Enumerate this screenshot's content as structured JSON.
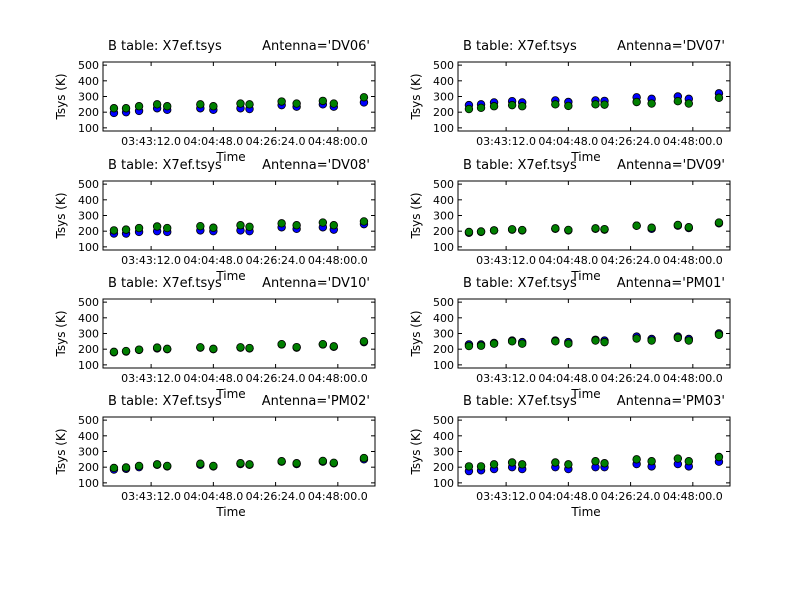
{
  "chart_data": [
    {
      "type": "scatter",
      "title": "B table: X7ef.tsys",
      "antenna": "Antenna='DV06'",
      "xlabel": "Time",
      "ylabel": "Tsys (K)",
      "ylim": [
        80,
        520
      ],
      "yticks": [
        100,
        200,
        300,
        400,
        500
      ],
      "xticks": [
        "03:43:12.0",
        "04:04:48.0",
        "04:26:24.0",
        "04:48:00.0"
      ],
      "xlim": [
        "03:26:30",
        "05:00:54"
      ],
      "x": [
        "03:30:18",
        "03:34:30",
        "03:39:01",
        "03:45:17",
        "03:48:47",
        "04:00:17",
        "04:04:48",
        "04:14:13",
        "04:17:21",
        "04:28:30",
        "04:33:42",
        "04:42:48",
        "04:46:36",
        "04:57:04"
      ],
      "series": [
        {
          "color": "#0000ff",
          "values": [
            195,
            200,
            208,
            225,
            215,
            225,
            215,
            225,
            220,
            245,
            235,
            250,
            235,
            262
          ]
        },
        {
          "color": "#007f00",
          "values": [
            225,
            225,
            238,
            250,
            238,
            250,
            238,
            255,
            250,
            268,
            255,
            272,
            255,
            295
          ]
        }
      ]
    },
    {
      "type": "scatter",
      "title": "B table: X7ef.tsys",
      "antenna": "Antenna='DV07'",
      "xlabel": "Time",
      "ylabel": "Tsys (K)",
      "ylim": [
        80,
        520
      ],
      "yticks": [
        100,
        200,
        300,
        400,
        500
      ],
      "xticks": [
        "03:43:12.0",
        "04:04:48.0",
        "04:26:24.0",
        "04:48:00.0"
      ],
      "xlim": [
        "03:26:30",
        "05:00:54"
      ],
      "x": [
        "03:30:18",
        "03:34:30",
        "03:39:01",
        "03:45:17",
        "03:48:47",
        "04:00:17",
        "04:04:48",
        "04:14:13",
        "04:17:21",
        "04:28:30",
        "04:33:42",
        "04:42:48",
        "04:46:36",
        "04:57:04"
      ],
      "series": [
        {
          "color": "#0000ff",
          "values": [
            245,
            250,
            262,
            270,
            262,
            275,
            265,
            275,
            272,
            295,
            285,
            300,
            285,
            320
          ]
        },
        {
          "color": "#007f00",
          "values": [
            220,
            228,
            238,
            245,
            238,
            250,
            240,
            250,
            248,
            265,
            255,
            270,
            255,
            292
          ]
        }
      ]
    },
    {
      "type": "scatter",
      "title": "B table: X7ef.tsys",
      "antenna": "Antenna='DV08'",
      "xlabel": "Time",
      "ylabel": "Tsys (K)",
      "ylim": [
        80,
        520
      ],
      "yticks": [
        100,
        200,
        300,
        400,
        500
      ],
      "xticks": [
        "03:43:12.0",
        "04:04:48.0",
        "04:26:24.0",
        "04:48:00.0"
      ],
      "xlim": [
        "03:26:30",
        "05:00:54"
      ],
      "x": [
        "03:30:18",
        "03:34:30",
        "03:39:01",
        "03:45:17",
        "03:48:47",
        "04:00:17",
        "04:04:48",
        "04:14:13",
        "04:17:21",
        "04:28:30",
        "04:33:42",
        "04:42:48",
        "04:46:36",
        "04:57:04"
      ],
      "series": [
        {
          "color": "#0000ff",
          "values": [
            185,
            185,
            195,
            200,
            195,
            205,
            200,
            205,
            200,
            225,
            215,
            225,
            210,
            245
          ]
        },
        {
          "color": "#007f00",
          "values": [
            205,
            210,
            220,
            230,
            220,
            232,
            222,
            238,
            228,
            250,
            238,
            255,
            238,
            262
          ]
        }
      ]
    },
    {
      "type": "scatter",
      "title": "B table: X7ef.tsys",
      "antenna": "Antenna='DV09'",
      "xlabel": "Time",
      "ylabel": "Tsys (K)",
      "ylim": [
        80,
        520
      ],
      "yticks": [
        100,
        200,
        300,
        400,
        500
      ],
      "xticks": [
        "03:43:12.0",
        "04:04:48.0",
        "04:26:24.0",
        "04:48:00.0"
      ],
      "xlim": [
        "03:26:30",
        "05:00:54"
      ],
      "x": [
        "03:30:18",
        "03:34:30",
        "03:39:01",
        "03:45:17",
        "03:48:47",
        "04:00:17",
        "04:04:48",
        "04:14:13",
        "04:17:21",
        "04:28:30",
        "04:33:42",
        "04:42:48",
        "04:46:36",
        "04:57:04"
      ],
      "series": [
        {
          "color": "#0000ff",
          "values": [
            190,
            195,
            205,
            210,
            205,
            215,
            205,
            215,
            210,
            235,
            215,
            235,
            220,
            250
          ]
        },
        {
          "color": "#007f00",
          "values": [
            195,
            198,
            205,
            212,
            207,
            218,
            208,
            218,
            213,
            235,
            222,
            240,
            225,
            255
          ]
        }
      ]
    },
    {
      "type": "scatter",
      "title": "B table: X7ef.tsys",
      "antenna": "Antenna='DV10'",
      "xlabel": "Time",
      "ylabel": "Tsys (K)",
      "ylim": [
        80,
        520
      ],
      "yticks": [
        100,
        200,
        300,
        400,
        500
      ],
      "xticks": [
        "03:43:12.0",
        "04:04:48.0",
        "04:26:24.0",
        "04:48:00.0"
      ],
      "xlim": [
        "03:26:30",
        "05:00:54"
      ],
      "x": [
        "03:30:18",
        "03:34:30",
        "03:39:01",
        "03:45:17",
        "03:48:47",
        "04:00:17",
        "04:04:48",
        "04:14:13",
        "04:17:21",
        "04:28:30",
        "04:33:42",
        "04:42:48",
        "04:46:36",
        "04:57:04"
      ],
      "series": [
        {
          "color": "#0000ff",
          "values": [
            180,
            185,
            195,
            205,
            200,
            210,
            200,
            210,
            205,
            230,
            210,
            230,
            215,
            245
          ]
        },
        {
          "color": "#007f00",
          "values": [
            183,
            188,
            197,
            210,
            202,
            212,
            202,
            212,
            207,
            232,
            213,
            232,
            218,
            250
          ]
        }
      ]
    },
    {
      "type": "scatter",
      "title": "B table: X7ef.tsys",
      "antenna": "Antenna='PM01'",
      "xlabel": "Time",
      "ylabel": "Tsys (K)",
      "ylim": [
        80,
        520
      ],
      "yticks": [
        100,
        200,
        300,
        400,
        500
      ],
      "xticks": [
        "03:43:12.0",
        "04:04:48.0",
        "04:26:24.0",
        "04:48:00.0"
      ],
      "xlim": [
        "03:26:30",
        "05:00:54"
      ],
      "x": [
        "03:30:18",
        "03:34:30",
        "03:39:01",
        "03:45:17",
        "03:48:47",
        "04:00:17",
        "04:04:48",
        "04:14:13",
        "04:17:21",
        "04:28:30",
        "04:33:42",
        "04:42:48",
        "04:46:36",
        "04:57:04"
      ],
      "series": [
        {
          "color": "#0000ff",
          "values": [
            230,
            230,
            240,
            255,
            245,
            255,
            245,
            260,
            255,
            280,
            265,
            280,
            265,
            300
          ]
        },
        {
          "color": "#007f00",
          "values": [
            220,
            222,
            235,
            250,
            235,
            250,
            235,
            255,
            245,
            268,
            255,
            272,
            255,
            292
          ]
        }
      ]
    },
    {
      "type": "scatter",
      "title": "B table: X7ef.tsys",
      "antenna": "Antenna='PM02'",
      "xlabel": "Time",
      "ylabel": "Tsys (K)",
      "ylim": [
        80,
        520
      ],
      "yticks": [
        100,
        200,
        300,
        400,
        500
      ],
      "xticks": [
        "03:43:12.0",
        "04:04:48.0",
        "04:26:24.0",
        "04:48:00.0"
      ],
      "xlim": [
        "03:26:30",
        "05:00:54"
      ],
      "x": [
        "03:30:18",
        "03:34:30",
        "03:39:01",
        "03:45:17",
        "03:48:47",
        "04:00:17",
        "04:04:48",
        "04:14:13",
        "04:17:21",
        "04:28:30",
        "04:33:42",
        "04:42:48",
        "04:46:36",
        "04:57:04"
      ],
      "series": [
        {
          "color": "#0000ff",
          "values": [
            185,
            190,
            200,
            215,
            205,
            215,
            205,
            220,
            215,
            235,
            220,
            235,
            225,
            250
          ]
        },
        {
          "color": "#007f00",
          "values": [
            195,
            198,
            208,
            218,
            208,
            222,
            208,
            225,
            218,
            238,
            225,
            240,
            228,
            258
          ]
        }
      ]
    },
    {
      "type": "scatter",
      "title": "B table: X7ef.tsys",
      "antenna": "Antenna='PM03'",
      "xlabel": "Time",
      "ylabel": "Tsys (K)",
      "ylim": [
        80,
        520
      ],
      "yticks": [
        100,
        200,
        300,
        400,
        500
      ],
      "xticks": [
        "03:43:12.0",
        "04:04:48.0",
        "04:26:24.0",
        "04:48:00.0"
      ],
      "xlim": [
        "03:26:30",
        "05:00:54"
      ],
      "x": [
        "03:30:18",
        "03:34:30",
        "03:39:01",
        "03:45:17",
        "03:48:47",
        "04:00:17",
        "04:04:48",
        "04:14:13",
        "04:17:21",
        "04:28:30",
        "04:33:42",
        "04:42:48",
        "04:46:36",
        "04:57:04"
      ],
      "series": [
        {
          "color": "#0000ff",
          "values": [
            175,
            180,
            188,
            200,
            188,
            200,
            188,
            200,
            200,
            220,
            205,
            220,
            205,
            235
          ]
        },
        {
          "color": "#007f00",
          "values": [
            205,
            205,
            218,
            230,
            218,
            230,
            218,
            238,
            225,
            250,
            238,
            255,
            238,
            265
          ]
        }
      ]
    }
  ]
}
